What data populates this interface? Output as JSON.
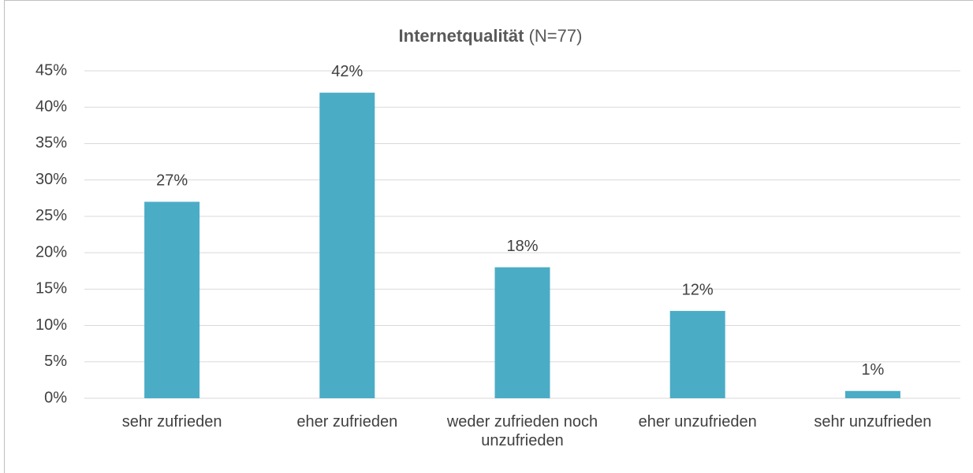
{
  "chart_data": {
    "type": "bar",
    "title": "Internetqualität",
    "title_note": "(N=77)",
    "categories": [
      "sehr zufrieden",
      "eher zufrieden",
      "weder zufrieden noch unzufrieden",
      "eher unzufrieden",
      "sehr unzufrieden"
    ],
    "values": [
      27,
      42,
      18,
      12,
      1
    ],
    "value_labels": [
      "27%",
      "42%",
      "18%",
      "12%",
      "1%"
    ],
    "color": "#4bacc6",
    "ylim": [
      0,
      45
    ],
    "yticks": [
      {
        "value": 0,
        "label": "0%"
      },
      {
        "value": 5,
        "label": "5%"
      },
      {
        "value": 10,
        "label": "10%"
      },
      {
        "value": 15,
        "label": "15%"
      },
      {
        "value": 20,
        "label": "20%"
      },
      {
        "value": 25,
        "label": "25%"
      },
      {
        "value": 30,
        "label": "30%"
      },
      {
        "value": 35,
        "label": "35%"
      },
      {
        "value": 40,
        "label": "40%"
      },
      {
        "value": 45,
        "label": "45%"
      }
    ],
    "grid": true
  }
}
